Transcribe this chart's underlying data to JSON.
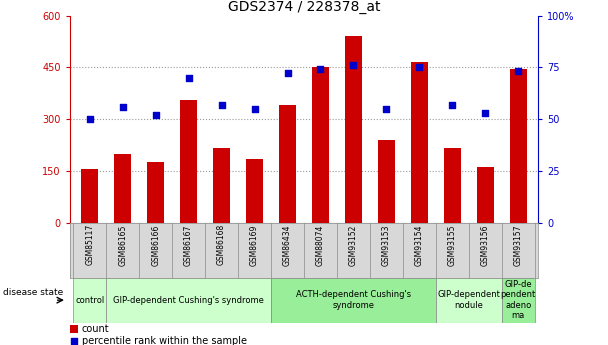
{
  "title": "GDS2374 / 228378_at",
  "samples": [
    "GSM85117",
    "GSM86165",
    "GSM86166",
    "GSM86167",
    "GSM86168",
    "GSM86169",
    "GSM86434",
    "GSM88074",
    "GSM93152",
    "GSM93153",
    "GSM93154",
    "GSM93155",
    "GSM93156",
    "GSM93157"
  ],
  "counts": [
    155,
    200,
    175,
    355,
    215,
    185,
    340,
    450,
    540,
    240,
    465,
    215,
    160,
    445
  ],
  "percentiles": [
    50,
    56,
    52,
    70,
    57,
    55,
    72,
    74,
    76,
    55,
    75,
    57,
    53,
    73
  ],
  "left_ylim": [
    0,
    600
  ],
  "right_ylim": [
    0,
    100
  ],
  "left_yticks": [
    0,
    150,
    300,
    450,
    600
  ],
  "right_yticks": [
    0,
    25,
    50,
    75,
    100
  ],
  "bar_color": "#cc0000",
  "dot_color": "#0000cc",
  "grid_color": "#999999",
  "disease_groups": [
    {
      "label": "control",
      "start": 0,
      "end": 1,
      "color": "#ccffcc"
    },
    {
      "label": "GIP-dependent Cushing's syndrome",
      "start": 1,
      "end": 6,
      "color": "#ccffcc"
    },
    {
      "label": "ACTH-dependent Cushing's\nsyndrome",
      "start": 6,
      "end": 11,
      "color": "#99ee99"
    },
    {
      "label": "GIP-dependent\nnodule",
      "start": 11,
      "end": 13,
      "color": "#ccffcc"
    },
    {
      "label": "GIP-de\npendent\nadeno\nma",
      "start": 13,
      "end": 14,
      "color": "#99ee99"
    }
  ],
  "left_axis_color": "#cc0000",
  "right_axis_color": "#0000cc",
  "title_fontsize": 10,
  "tick_fontsize": 7,
  "sample_fontsize": 5.5,
  "disease_fontsize": 6,
  "legend_fontsize": 7
}
